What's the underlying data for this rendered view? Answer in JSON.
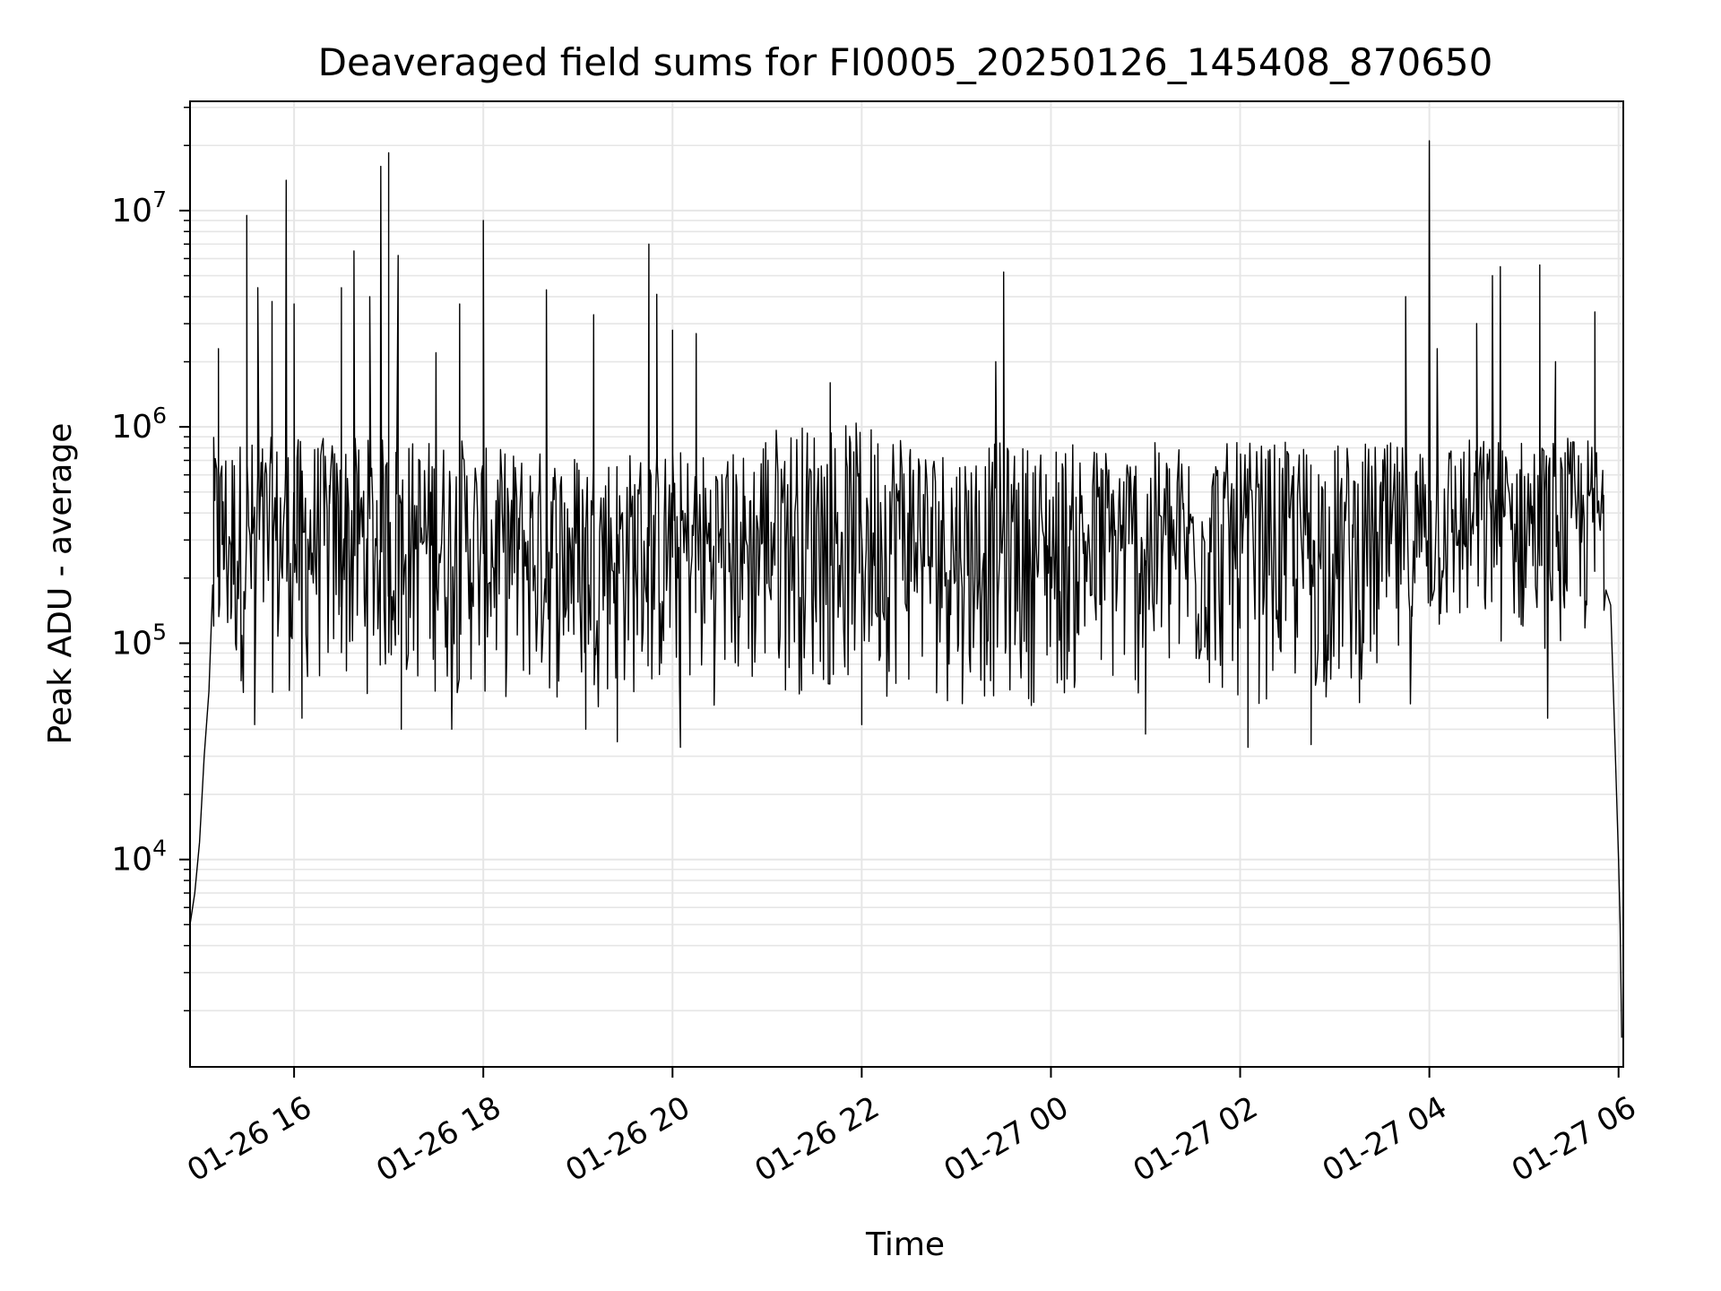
{
  "chart_data": {
    "type": "line",
    "title": "Deaveraged field sums for FI0005_20250126_145408_870650",
    "xlabel": "Time",
    "ylabel": "Peak ADU - average",
    "yscale": "log",
    "ylim": [
      1100,
      32000000
    ],
    "xlim": [
      "2025-01-26 14:54",
      "2025-01-27 06:03"
    ],
    "grid": true,
    "line_color": "#000000",
    "grid_color": "#e6e6e6",
    "x_ticks": [
      {
        "label": "01-26 16",
        "value": "2025-01-26 16:00"
      },
      {
        "label": "01-26 18",
        "value": "2025-01-26 18:00"
      },
      {
        "label": "01-26 20",
        "value": "2025-01-26 20:00"
      },
      {
        "label": "01-26 22",
        "value": "2025-01-26 22:00"
      },
      {
        "label": "01-27 00",
        "value": "2025-01-27 00:00"
      },
      {
        "label": "01-27 02",
        "value": "2025-01-27 02:00"
      },
      {
        "label": "01-27 04",
        "value": "2025-01-27 04:00"
      },
      {
        "label": "01-27 06",
        "value": "2025-01-27 06:00"
      }
    ],
    "y_ticks": [
      {
        "base": "10",
        "exp": "4",
        "value": 10000
      },
      {
        "base": "10",
        "exp": "5",
        "value": 100000
      },
      {
        "base": "10",
        "exp": "6",
        "value": 1000000
      },
      {
        "base": "10",
        "exp": "7",
        "value": 10000000
      }
    ],
    "series": [
      {
        "points": [
          [
            "2025-01-26 14:54",
            5000
          ],
          [
            "2025-01-26 14:57",
            7000
          ],
          [
            "2025-01-26 15:00",
            12000
          ],
          [
            "2025-01-26 15:03",
            30000
          ],
          [
            "2025-01-26 15:06",
            60000
          ],
          [
            "2025-01-26 15:09",
            120000
          ],
          [
            "2025-01-26 15:12",
            300000
          ],
          [
            "2025-01-26 15:15",
            450000
          ],
          [
            "2025-01-26 15:30",
            380000
          ],
          [
            "2025-01-26 16:00",
            300000
          ],
          [
            "2025-01-26 17:00",
            280000
          ],
          [
            "2025-01-26 18:00",
            260000
          ],
          [
            "2025-01-26 19:00",
            240000
          ],
          [
            "2025-01-26 20:00",
            250000
          ],
          [
            "2025-01-26 21:00",
            280000
          ],
          [
            "2025-01-26 22:00",
            300000
          ],
          [
            "2025-01-26 23:00",
            270000
          ],
          [
            "2025-01-27 00:00",
            250000
          ],
          [
            "2025-01-27 01:00",
            240000
          ],
          [
            "2025-01-27 02:00",
            230000
          ],
          [
            "2025-01-27 03:00",
            240000
          ],
          [
            "2025-01-27 03:52",
            250000
          ],
          [
            "2025-01-27 04:30",
            350000
          ],
          [
            "2025-01-27 05:30",
            380000
          ],
          [
            "2025-01-27 05:50",
            400000
          ],
          [
            "2025-01-27 05:55",
            150000
          ],
          [
            "2025-01-27 05:58",
            30000
          ],
          [
            "2025-01-27 06:00",
            10000
          ],
          [
            "2025-01-27 06:01",
            5000
          ],
          [
            "2025-01-27 06:02",
            1500
          ]
        ],
        "envelope": [
          {
            "from": "2025-01-26 15:08",
            "to": "2025-01-26 17:55",
            "low": 55000,
            "high": 900000
          },
          {
            "from": "2025-01-26 17:55",
            "to": "2025-01-26 20:55",
            "low": 50000,
            "high": 800000
          },
          {
            "from": "2025-01-26 20:55",
            "to": "2025-01-26 22:40",
            "low": 55000,
            "high": 1050000
          },
          {
            "from": "2025-01-26 22:40",
            "to": "2025-01-27 03:52",
            "low": 50000,
            "high": 850000
          },
          {
            "from": "2025-01-27 03:52",
            "to": "2025-01-27 05:52",
            "low": 90000,
            "high": 900000
          }
        ],
        "spikes": [
          [
            "2025-01-26 15:12",
            2300000
          ],
          [
            "2025-01-26 15:30",
            9500000
          ],
          [
            "2025-01-26 15:37",
            4400000
          ],
          [
            "2025-01-26 15:46",
            3800000
          ],
          [
            "2025-01-26 15:55",
            13800000
          ],
          [
            "2025-01-26 16:00",
            3700000
          ],
          [
            "2025-01-26 16:30",
            4400000
          ],
          [
            "2025-01-26 16:38",
            6500000
          ],
          [
            "2025-01-26 16:48",
            4000000
          ],
          [
            "2025-01-26 16:55",
            16000000
          ],
          [
            "2025-01-26 17:00",
            18500000
          ],
          [
            "2025-01-26 17:06",
            6200000
          ],
          [
            "2025-01-26 17:30",
            2200000
          ],
          [
            "2025-01-26 17:45",
            3700000
          ],
          [
            "2025-01-26 18:00",
            9000000
          ],
          [
            "2025-01-26 18:40",
            4300000
          ],
          [
            "2025-01-26 19:10",
            3300000
          ],
          [
            "2025-01-26 19:45",
            7000000
          ],
          [
            "2025-01-26 19:50",
            4100000
          ],
          [
            "2025-01-26 20:00",
            2800000
          ],
          [
            "2025-01-26 20:15",
            2700000
          ],
          [
            "2025-01-26 21:40",
            1600000
          ],
          [
            "2025-01-26 23:30",
            5200000
          ],
          [
            "2025-01-26 23:25",
            2000000
          ],
          [
            "2025-01-27 03:45",
            4000000
          ],
          [
            "2025-01-27 04:00",
            21000000
          ],
          [
            "2025-01-27 04:05",
            2300000
          ],
          [
            "2025-01-27 04:30",
            3000000
          ],
          [
            "2025-01-27 04:40",
            5000000
          ],
          [
            "2025-01-27 04:45",
            5500000
          ],
          [
            "2025-01-27 05:10",
            5600000
          ],
          [
            "2025-01-27 05:20",
            2000000
          ],
          [
            "2025-01-27 05:45",
            3400000
          ]
        ],
        "dips": [
          [
            "2025-01-26 15:20",
            130000
          ],
          [
            "2025-01-26 15:35",
            42000
          ],
          [
            "2025-01-26 16:05",
            45000
          ],
          [
            "2025-01-26 17:08",
            40000
          ],
          [
            "2025-01-26 17:40",
            40000
          ],
          [
            "2025-01-26 19:05",
            40000
          ],
          [
            "2025-01-26 19:25",
            35000
          ],
          [
            "2025-01-26 20:05",
            33000
          ],
          [
            "2025-01-26 22:00",
            42000
          ],
          [
            "2025-01-27 01:00",
            38000
          ],
          [
            "2025-01-27 02:05",
            33000
          ],
          [
            "2025-01-27 02:45",
            34000
          ],
          [
            "2025-01-27 05:15",
            45000
          ]
        ]
      }
    ]
  }
}
